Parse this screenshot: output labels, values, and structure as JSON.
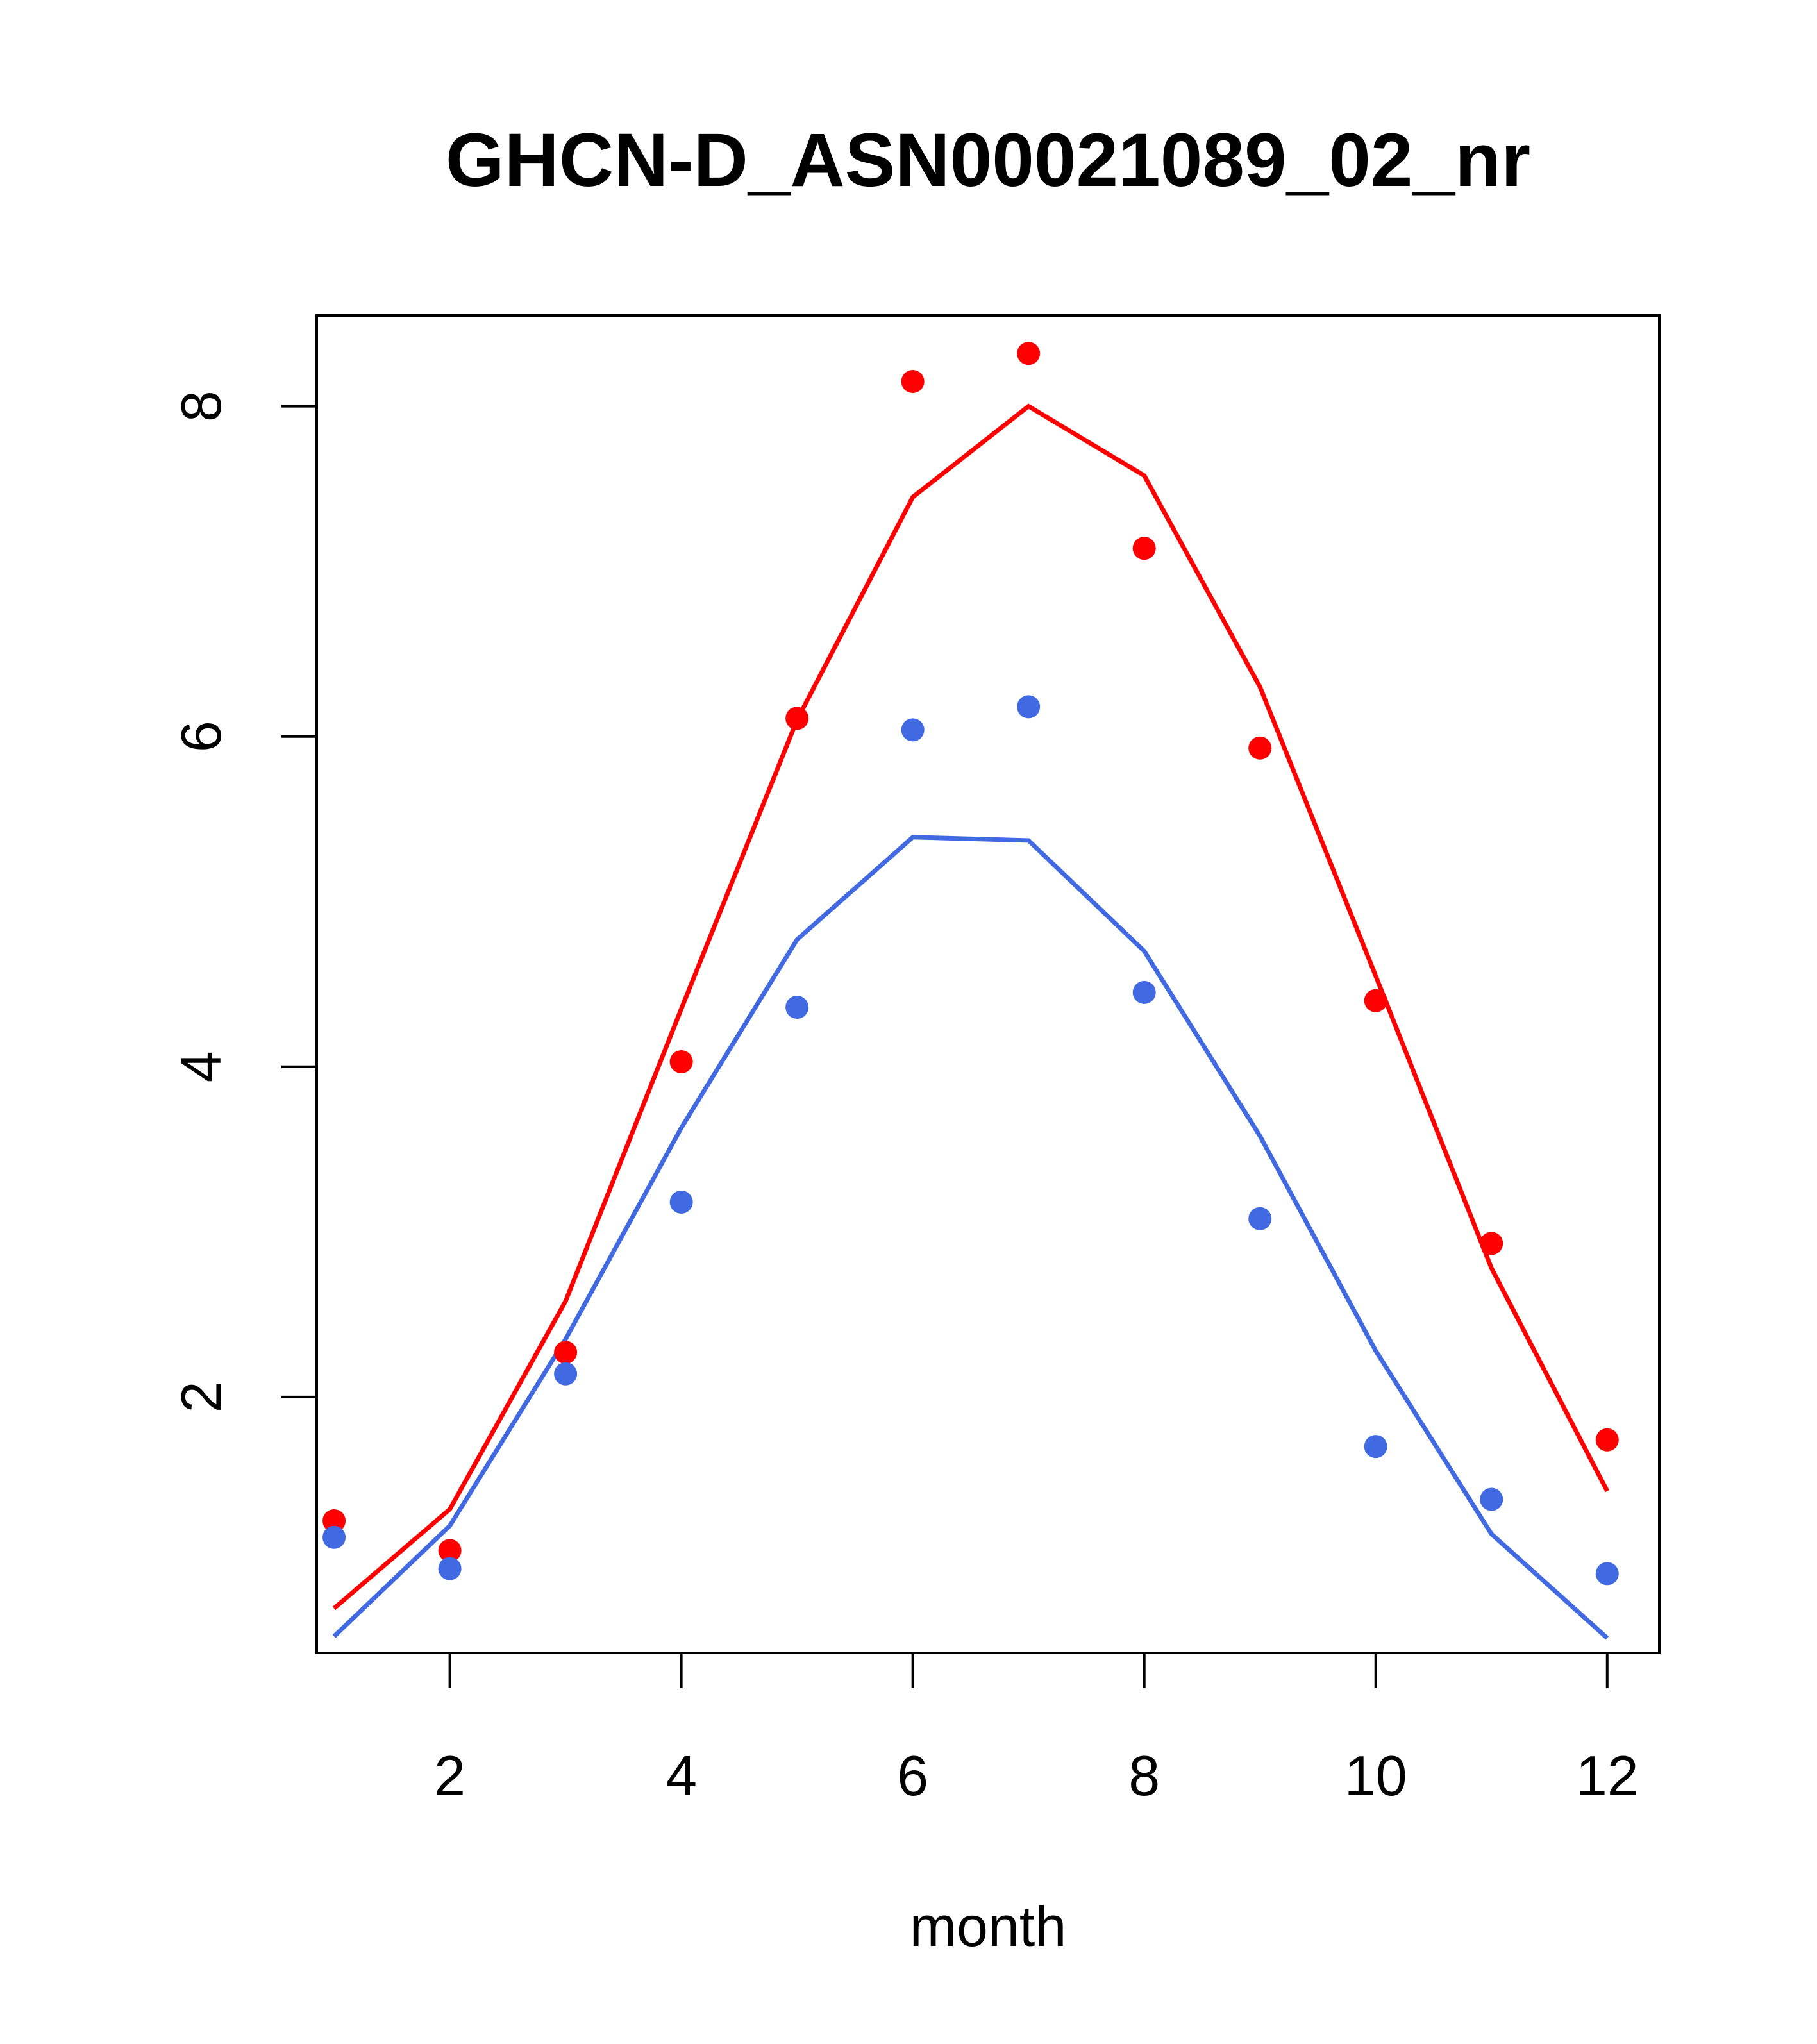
{
  "chart_data": {
    "type": "line+scatter",
    "title": "GHCN-D_ASN00021089_02_nr",
    "xlabel": "month",
    "ylabel": "",
    "xlim": [
      0.85,
      12.45
    ],
    "ylim": [
      0.45,
      8.55
    ],
    "x_ticks": [
      2,
      4,
      6,
      8,
      10,
      12
    ],
    "y_ticks": [
      2,
      4,
      6,
      8
    ],
    "grid": false,
    "legend": "none",
    "x": [
      1,
      2,
      3,
      4,
      5,
      6,
      7,
      8,
      9,
      10,
      11,
      12
    ],
    "series": [
      {
        "color": "#ff0000",
        "line": [
          0.72,
          1.32,
          2.58,
          4.35,
          6.1,
          7.45,
          8.0,
          7.58,
          6.3,
          4.55,
          2.78,
          1.43
        ],
        "points": [
          1.25,
          1.07,
          2.27,
          4.03,
          6.11,
          8.15,
          8.32,
          7.14,
          5.93,
          4.4,
          2.93,
          1.74
        ]
      },
      {
        "color": "#4169e1",
        "line": [
          0.55,
          1.22,
          2.35,
          3.63,
          4.77,
          5.39,
          5.37,
          4.7,
          3.58,
          2.28,
          1.17,
          0.54
        ],
        "points": [
          1.15,
          0.96,
          2.14,
          3.18,
          4.36,
          6.04,
          6.18,
          4.45,
          3.08,
          1.7,
          1.38,
          0.93
        ]
      }
    ]
  }
}
